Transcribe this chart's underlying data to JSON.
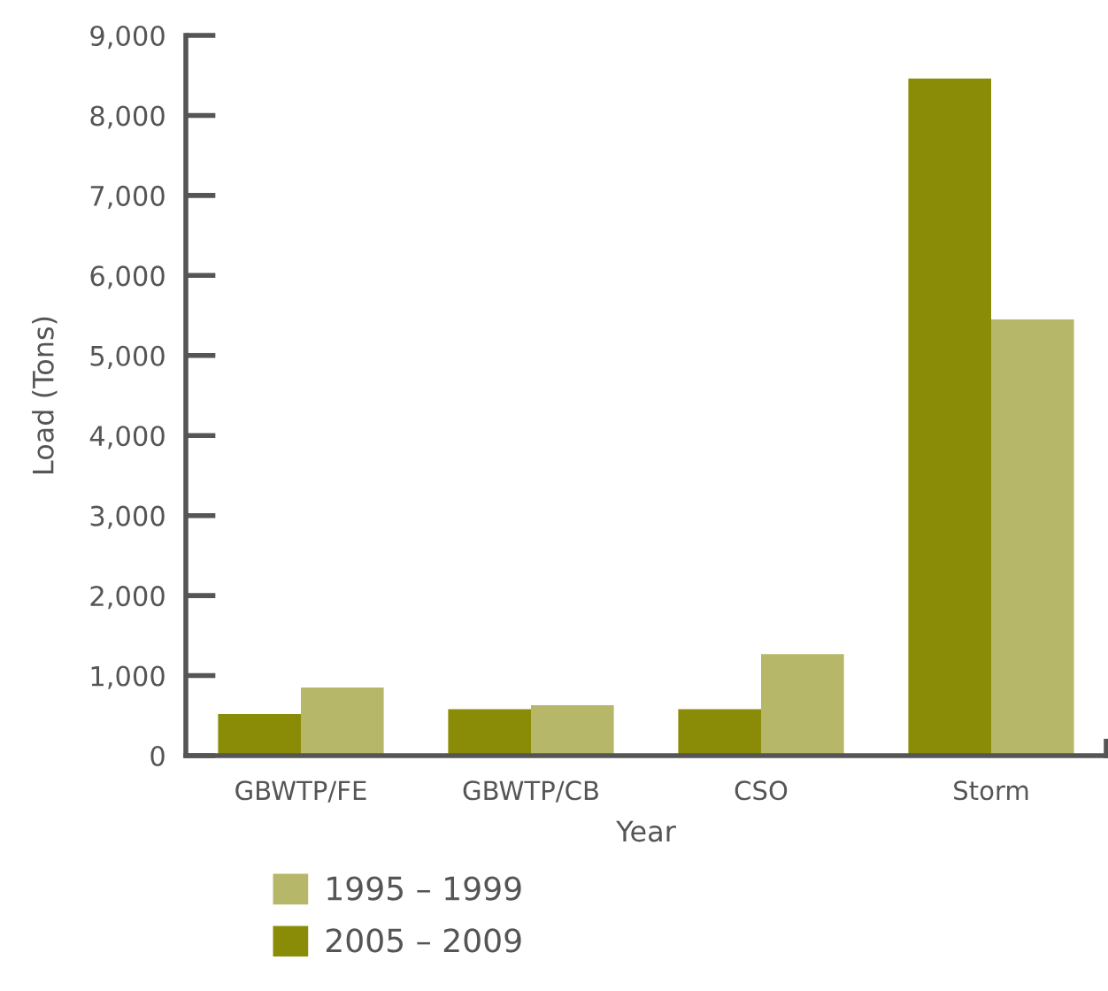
{
  "chart_data": {
    "type": "bar",
    "xlabel": "Year",
    "ylabel": "Load (Tons)",
    "categories": [
      "GBWTP/FE",
      "GBWTP/CB",
      "CSO",
      "Storm"
    ],
    "series": [
      {
        "name": "2005 – 2009",
        "color": "#8a8c07",
        "values": [
          520,
          580,
          580,
          8460
        ]
      },
      {
        "name": "1995 – 1999",
        "color": "#b7b769",
        "values": [
          850,
          630,
          1270,
          5450
        ]
      }
    ],
    "ylim": [
      0,
      9000
    ],
    "yticks": [
      {
        "value": 0,
        "label": "0"
      },
      {
        "value": 1000,
        "label": "1,000"
      },
      {
        "value": 2000,
        "label": "2,000"
      },
      {
        "value": 3000,
        "label": "3,000"
      },
      {
        "value": 4000,
        "label": "4,000"
      },
      {
        "value": 5000,
        "label": "5,000"
      },
      {
        "value": 6000,
        "label": "6,000"
      },
      {
        "value": 7000,
        "label": "7,000"
      },
      {
        "value": 8000,
        "label": "8,000"
      },
      {
        "value": 9000,
        "label": "9,000"
      }
    ],
    "grid": false,
    "legend": "bottom"
  }
}
